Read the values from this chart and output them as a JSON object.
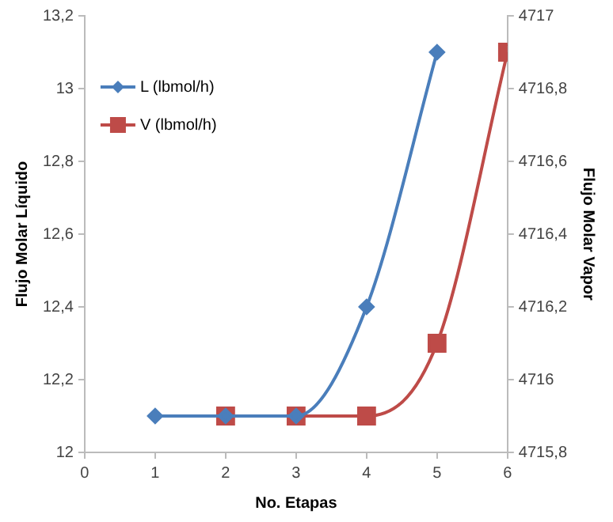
{
  "chart_data": {
    "type": "line",
    "xlabel": "No. Etapas",
    "ylabel": "Flujo Molar Líquido",
    "y2label": "Flujo Molar Vapor",
    "xlim": [
      0,
      6
    ],
    "xticks": [
      0,
      1,
      2,
      3,
      4,
      5,
      6
    ],
    "ylim": [
      12,
      13.2
    ],
    "yticks": [
      12,
      {
        "value": 12.2,
        "label": "12,2"
      },
      {
        "value": 12.4,
        "label": "12,4"
      },
      {
        "value": 12.6,
        "label": "12,6"
      },
      {
        "value": 12.8,
        "label": "12,8"
      },
      13,
      {
        "value": 13.2,
        "label": "13,2"
      }
    ],
    "y2lim": [
      4715.8,
      4717
    ],
    "y2ticks": [
      {
        "value": 4715.8,
        "label": "4715,8"
      },
      4716,
      {
        "value": 4716.2,
        "label": "4716,2"
      },
      {
        "value": 4716.4,
        "label": "4716,4"
      },
      {
        "value": 4716.6,
        "label": "4716,6"
      },
      {
        "value": 4716.8,
        "label": "4716,8"
      },
      4717
    ],
    "grid": false,
    "legend": "top left",
    "series": [
      {
        "name": "L (lbmol/h)",
        "color": "#4a7ebb",
        "marker": "diamond",
        "x": [
          1,
          2,
          3,
          4,
          5
        ],
        "values": [
          12.1,
          12.1,
          12.1,
          12.4,
          13.1
        ]
      },
      {
        "name": "V (lbmol/h)",
        "color": "#be4b48",
        "marker": "square",
        "axis": "y2",
        "x": [
          2,
          3,
          4,
          5,
          6
        ],
        "values": [
          4715.9,
          4715.9,
          4715.9,
          4716.1,
          4716.9
        ]
      }
    ]
  }
}
